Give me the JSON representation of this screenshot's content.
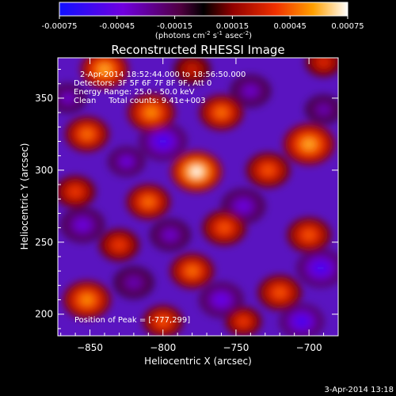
{
  "chart_data": {
    "type": "heatmap",
    "title": "Reconstructed RHESSI Image",
    "xlabel": "Heliocentric X (arcsec)",
    "ylabel": "Heliocentric Y (arcsec)",
    "xlim": [
      -872,
      -680
    ],
    "ylim": [
      185,
      378
    ],
    "xticks": [
      -850,
      -800,
      -750,
      -700
    ],
    "yticks": [
      200,
      250,
      300,
      350
    ],
    "colorbar": {
      "ticks": [
        "-0.00075",
        "-0.00045",
        "-0.00015",
        "0.00015",
        "0.00045",
        "0.00075"
      ],
      "range": [
        -0.00075,
        0.00075
      ],
      "units_main": "(photons cm",
      "units_sup1": "-2",
      "units_mid": " s",
      "units_sup2": "-1",
      "units_end": " asec",
      "units_sup3": "-2",
      "units_close": ")"
    },
    "annotations": [
      "2-Apr-2014 18:52:44.000 to 18:56:50.000",
      "Detectors: 3F 5F 6F 7F 8F 9F, Att 0",
      "Energy Range: 25.0 - 50.0 keV",
      "Clean     Total counts: 9.41e+003"
    ],
    "peak_label": "Position of Peak = [-777,299]",
    "peak": [
      -777,
      299
    ],
    "sources": [
      {
        "x": -777,
        "y": 299,
        "value": 0.00075,
        "r": 14
      },
      {
        "x": -840,
        "y": 370,
        "value": 0.0006,
        "r": 13
      },
      {
        "x": -808,
        "y": 340,
        "value": 0.00055,
        "r": 13
      },
      {
        "x": -760,
        "y": 340,
        "value": 0.0005,
        "r": 12
      },
      {
        "x": -852,
        "y": 325,
        "value": 0.0005,
        "r": 12
      },
      {
        "x": -700,
        "y": 318,
        "value": 0.0006,
        "r": 14
      },
      {
        "x": -728,
        "y": 300,
        "value": 0.00045,
        "r": 12
      },
      {
        "x": -810,
        "y": 278,
        "value": 0.0005,
        "r": 12
      },
      {
        "x": -860,
        "y": 285,
        "value": 0.0004,
        "r": 11
      },
      {
        "x": -758,
        "y": 260,
        "value": 0.00045,
        "r": 12
      },
      {
        "x": -700,
        "y": 255,
        "value": 0.00045,
        "r": 12
      },
      {
        "x": -830,
        "y": 248,
        "value": 0.0004,
        "r": 11
      },
      {
        "x": -780,
        "y": 230,
        "value": 0.0005,
        "r": 12
      },
      {
        "x": -720,
        "y": 215,
        "value": 0.00045,
        "r": 12
      },
      {
        "x": -852,
        "y": 210,
        "value": 0.00055,
        "r": 13
      },
      {
        "x": -800,
        "y": 195,
        "value": 0.00045,
        "r": 11
      },
      {
        "x": -745,
        "y": 195,
        "value": 0.0004,
        "r": 10
      },
      {
        "x": -690,
        "y": 375,
        "value": 0.00035,
        "r": 10
      },
      {
        "x": -780,
        "y": 370,
        "value": 0.0003,
        "r": 10
      },
      {
        "x": -800,
        "y": 320,
        "value": -0.0006,
        "r": 13
      },
      {
        "x": -825,
        "y": 306,
        "value": -0.00045,
        "r": 10
      },
      {
        "x": -740,
        "y": 355,
        "value": -0.0004,
        "r": 11
      },
      {
        "x": -690,
        "y": 342,
        "value": -0.00035,
        "r": 10
      },
      {
        "x": -745,
        "y": 275,
        "value": -0.00045,
        "r": 12
      },
      {
        "x": -855,
        "y": 262,
        "value": -0.00045,
        "r": 12
      },
      {
        "x": -795,
        "y": 255,
        "value": -0.0004,
        "r": 11
      },
      {
        "x": -692,
        "y": 232,
        "value": -0.0006,
        "r": 13
      },
      {
        "x": -820,
        "y": 222,
        "value": -0.00035,
        "r": 11
      },
      {
        "x": -760,
        "y": 210,
        "value": -0.0005,
        "r": 12
      },
      {
        "x": -705,
        "y": 195,
        "value": -0.0006,
        "r": 12
      },
      {
        "x": -865,
        "y": 350,
        "value": -0.0004,
        "r": 10
      }
    ]
  },
  "footer": {
    "date": "3-Apr-2014 13:18"
  }
}
